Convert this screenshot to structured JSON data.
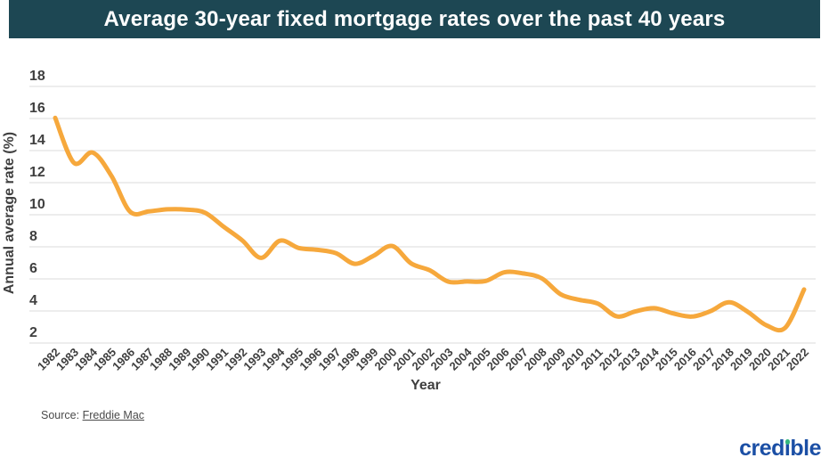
{
  "header": {
    "title": "Average 30-year fixed mortgage rates over the past 40 years"
  },
  "colors": {
    "header_bg": "#1d4753",
    "line": "#F6A83C",
    "grid": "#DBDBDB",
    "text": "#3F3F3F",
    "logo_blue": "#1B4FA5",
    "logo_dot": "#35B87E",
    "source_text": "#4A4A4A"
  },
  "chart_data": {
    "type": "line",
    "title": "Average 30-year fixed mortgage rates over the past 40 years",
    "xlabel": "Year",
    "ylabel": "Annual average rate (%)",
    "x": [
      1982,
      1983,
      1984,
      1985,
      1986,
      1987,
      1988,
      1989,
      1990,
      1991,
      1992,
      1993,
      1994,
      1995,
      1996,
      1997,
      1998,
      1999,
      2000,
      2001,
      2002,
      2003,
      2004,
      2005,
      2006,
      2007,
      2008,
      2009,
      2010,
      2011,
      2012,
      2013,
      2014,
      2015,
      2016,
      2017,
      2018,
      2019,
      2020,
      2021,
      2022
    ],
    "series": [
      {
        "name": "Average 30-year fixed mortgage rate (%)",
        "values": [
          16.04,
          13.24,
          13.88,
          12.43,
          10.19,
          10.21,
          10.34,
          10.32,
          10.13,
          9.25,
          8.39,
          7.31,
          8.38,
          7.93,
          7.81,
          7.6,
          6.94,
          7.44,
          8.05,
          6.97,
          6.54,
          5.83,
          5.84,
          5.87,
          6.41,
          6.34,
          6.03,
          5.04,
          4.69,
          4.45,
          3.66,
          3.98,
          4.17,
          3.85,
          3.65,
          3.99,
          4.54,
          3.94,
          3.1,
          2.96,
          5.34
        ]
      }
    ],
    "ylim": [
      2,
      18
    ],
    "yticks": [
      2,
      4,
      6,
      8,
      10,
      12,
      14,
      16,
      18
    ],
    "grid": "horizontal-only",
    "legend": "none",
    "line_smoothing": true
  },
  "footer": {
    "source_prefix": "Source: ",
    "source_link": "Freddie Mac",
    "logo": {
      "prefix": "cred",
      "dotless_i": "ı",
      "suffix": "ble"
    }
  }
}
